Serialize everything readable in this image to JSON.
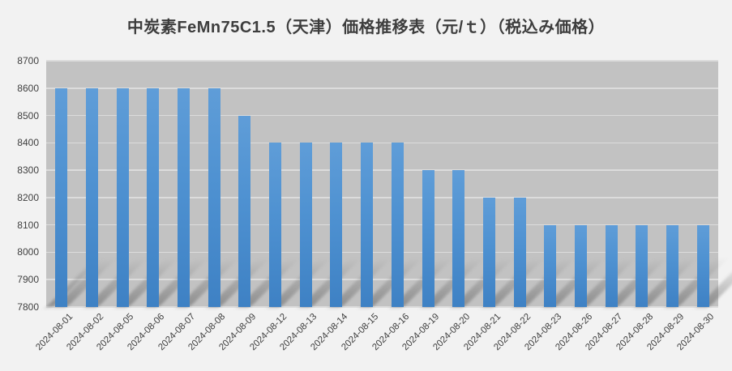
{
  "chart_data": {
    "type": "bar",
    "title": "中炭素FeMn75C1.5（天津）価格推移表（元/ｔ）（税込み価格）",
    "categories": [
      "2024-08-01",
      "2024-08-02",
      "2024-08-05",
      "2024-08-06",
      "2024-08-07",
      "2024-08-08",
      "2024-08-09",
      "2024-08-12",
      "2024-08-13",
      "2024-08-14",
      "2024-08-15",
      "2024-08-16",
      "2024-08-19",
      "2024-08-20",
      "2024-08-21",
      "2024-08-22",
      "2024-08-23",
      "2024-08-26",
      "2024-08-27",
      "2024-08-28",
      "2024-08-29",
      "2024-08-30"
    ],
    "values": [
      8600,
      8600,
      8600,
      8600,
      8600,
      8600,
      8500,
      8400,
      8400,
      8400,
      8400,
      8400,
      8300,
      8300,
      8200,
      8200,
      8100,
      8100,
      8100,
      8100,
      8100,
      8100
    ],
    "xlabel": "",
    "ylabel": "",
    "ylim": [
      7800,
      8700
    ],
    "ytick_step": 100,
    "yticks": [
      7800,
      7900,
      8000,
      8100,
      8200,
      8300,
      8400,
      8500,
      8600,
      8700
    ],
    "grid": true,
    "legend": "none",
    "colors": {
      "page_bg": "#f2f2f2",
      "plot_bg": "#c2c2c2",
      "gridline": "#dcdcdc",
      "bar_top": "#5f9dd8",
      "bar_bottom": "#3e81c4",
      "tick_text": "#404040",
      "title_text": "#3d3d3d"
    }
  }
}
